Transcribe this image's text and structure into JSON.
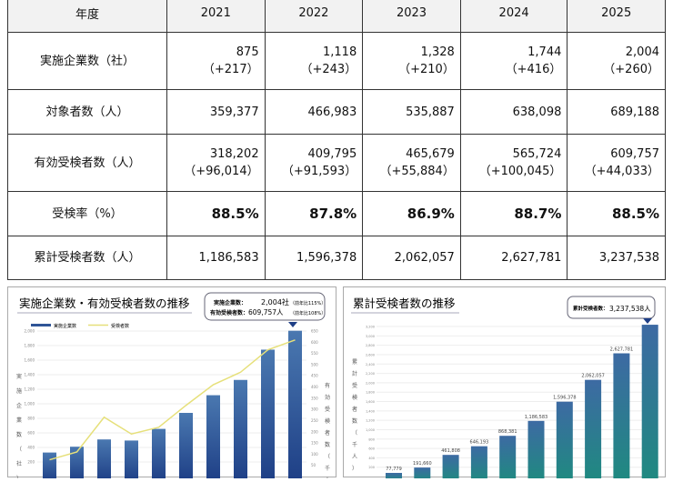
{
  "table": {
    "header": [
      "年度",
      "2021",
      "2022",
      "2023",
      "2024",
      "2025"
    ],
    "rows": [
      {
        "label": "実施企業数（社）",
        "values": [
          "875",
          "1,118",
          "1,328",
          "1,744",
          "2,004"
        ],
        "sub": [
          "（+217）",
          "（+243）",
          "（+210）",
          "（+416）",
          "（+260）"
        ]
      },
      {
        "label": "対象者数（人）",
        "values": [
          "359,377",
          "466,983",
          "535,887",
          "638,098",
          "689,188"
        ]
      },
      {
        "label": "有効受検者数（人）",
        "values": [
          "318,202",
          "409,795",
          "465,679",
          "565,724",
          "609,757"
        ],
        "sub": [
          "（+96,014）",
          "（+91,593）",
          "（+55,884）",
          "（+100,045）",
          "（+44,033）"
        ]
      },
      {
        "label": "受検率（%）",
        "values": [
          "88.5%",
          "87.8%",
          "86.9%",
          "88.7%",
          "88.5%"
        ],
        "bold": true
      },
      {
        "label": "累計受検者数（人）",
        "values": [
          "1,186,583",
          "1,596,378",
          "2,062,057",
          "2,627,781",
          "3,237,538"
        ]
      }
    ]
  },
  "chart_data": [
    {
      "type": "bar",
      "title": "実施企業数・有効受検者数の推移",
      "callout": [
        "実施企業数：",
        "2,004",
        "社",
        "（前年比115%）",
        "有効受検者数：",
        "609,757",
        "人",
        "（前年比108%）"
      ],
      "legend": [
        "実施企業数",
        "受検者数"
      ],
      "ylabel": "実施企業数（社）",
      "y2label": "有効受検者数（千人）",
      "ylim": [
        0,
        2000
      ],
      "yticks": [
        200,
        400,
        600,
        800,
        1000,
        1200,
        1400,
        1600,
        1800,
        2000
      ],
      "y2lim": [
        0,
        650
      ],
      "y2ticks": [
        50,
        100,
        150,
        200,
        250,
        300,
        350,
        400,
        450,
        500,
        550,
        600,
        650
      ],
      "series": [
        {
          "name": "実施企業数",
          "type": "bar",
          "values": [
            330,
            410,
            510,
            495,
            655,
            875,
            1118,
            1328,
            1744,
            2004
          ]
        },
        {
          "name": "受検者数",
          "type": "line",
          "axis": "right",
          "values": [
            75,
            110,
            265,
            190,
            220,
            318,
            410,
            466,
            566,
            610
          ]
        }
      ],
      "colors": {
        "bar": "#2f5597",
        "line": "#e6e07a"
      }
    },
    {
      "type": "bar",
      "title": "累計受検者数の推移",
      "callout": [
        "累計受検者数：",
        "3,237,538",
        "人"
      ],
      "ylabel": "累計受検者数（千人）",
      "ylim": [
        0,
        3200
      ],
      "yticks": [
        200,
        400,
        600,
        800,
        1000,
        1200,
        1400,
        1600,
        1800,
        2000,
        2200,
        2400,
        2600,
        2800,
        3000,
        3200
      ],
      "values": [
        77.779,
        191.66,
        461.808,
        646.193,
        868.381,
        1186.583,
        1596.378,
        2062.057,
        2627.781,
        3237.538
      ],
      "labels": [
        "77,779",
        "191,660",
        "461,808",
        "646,193",
        "868,381",
        "1,186,583",
        "1,596,378",
        "2,062,057",
        "2,627,781",
        ""
      ],
      "colors": {
        "top": "#3d6aa3",
        "bottom": "#1f8a80"
      }
    }
  ]
}
